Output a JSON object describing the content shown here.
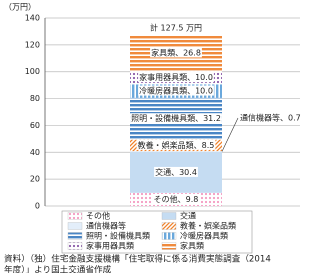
{
  "chart_data": {
    "type": "stacked_bar",
    "y_label": "（万円）",
    "categories": [
      null
    ],
    "series": [
      {
        "name": "その他",
        "color": "#f49ac1",
        "pattern": "dots",
        "values": [
          9.8
        ],
        "value_labels": [
          "その他、9.8"
        ]
      },
      {
        "name": "交通",
        "color": "#c5dcf2",
        "pattern": "solid",
        "values": [
          30.4
        ],
        "value_labels": [
          "交通、30.4"
        ]
      },
      {
        "name": "通信機器等",
        "color": "#e3eefa",
        "pattern": "solid",
        "values": [
          0.7
        ],
        "value_labels": [
          "通信機器等、0.7"
        ]
      },
      {
        "name": "教養・娯楽品類",
        "color": "#f0822a",
        "pattern": "diagonal",
        "values": [
          8.5
        ],
        "value_labels": [
          "教養・娯楽品類、8.5"
        ]
      },
      {
        "name": "照明・設備機具類",
        "color": "#4a86c5",
        "pattern": "hstripes",
        "values": [
          31.2
        ],
        "value_labels": [
          "照明・設備機具類、31.2"
        ]
      },
      {
        "name": "冷暖房器具類",
        "color": "#6aa8dc",
        "pattern": "vstripes",
        "values": [
          10.0
        ],
        "value_labels": [
          "冷暖房器具類、10.0"
        ]
      },
      {
        "name": "家事用器具類",
        "color": "#8a5aa8",
        "pattern": "dots",
        "values": [
          10.0
        ],
        "value_labels": [
          "家事用器具類、10.0"
        ]
      },
      {
        "name": "家具類",
        "color": "#f08a3c",
        "pattern": "hstripes",
        "values": [
          26.8
        ],
        "value_labels": [
          "家具類、26.8"
        ]
      }
    ],
    "total_label": "計 127.5 万円",
    "ylim": [
      0,
      140
    ],
    "yticks": [
      0,
      20,
      40,
      60,
      80,
      100,
      120,
      140
    ],
    "grid": true,
    "source": [
      "資料）（独）住宅金融支援機構「住宅取得に係る消費実態調査（2014",
      "年度）」より国土交通省作成"
    ]
  }
}
